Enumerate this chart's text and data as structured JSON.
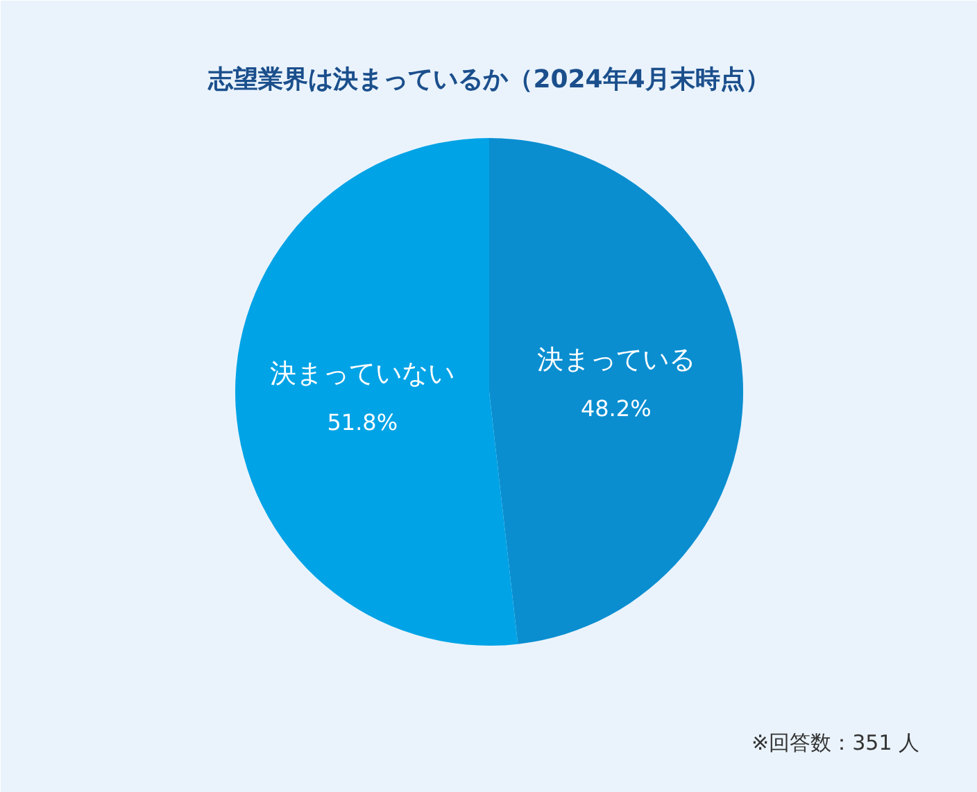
{
  "chart_data": {
    "type": "pie",
    "title": "志望業界は決まっているか（2024年4月末時点）",
    "categories": [
      "決まっている",
      "決まっていない"
    ],
    "values": [
      48.2,
      51.8
    ],
    "colors": [
      "#0a8ed0",
      "#00a3e6"
    ],
    "value_labels": [
      "48.2%",
      "51.8%"
    ],
    "annotations": [
      "※回答数：351 人"
    ]
  }
}
